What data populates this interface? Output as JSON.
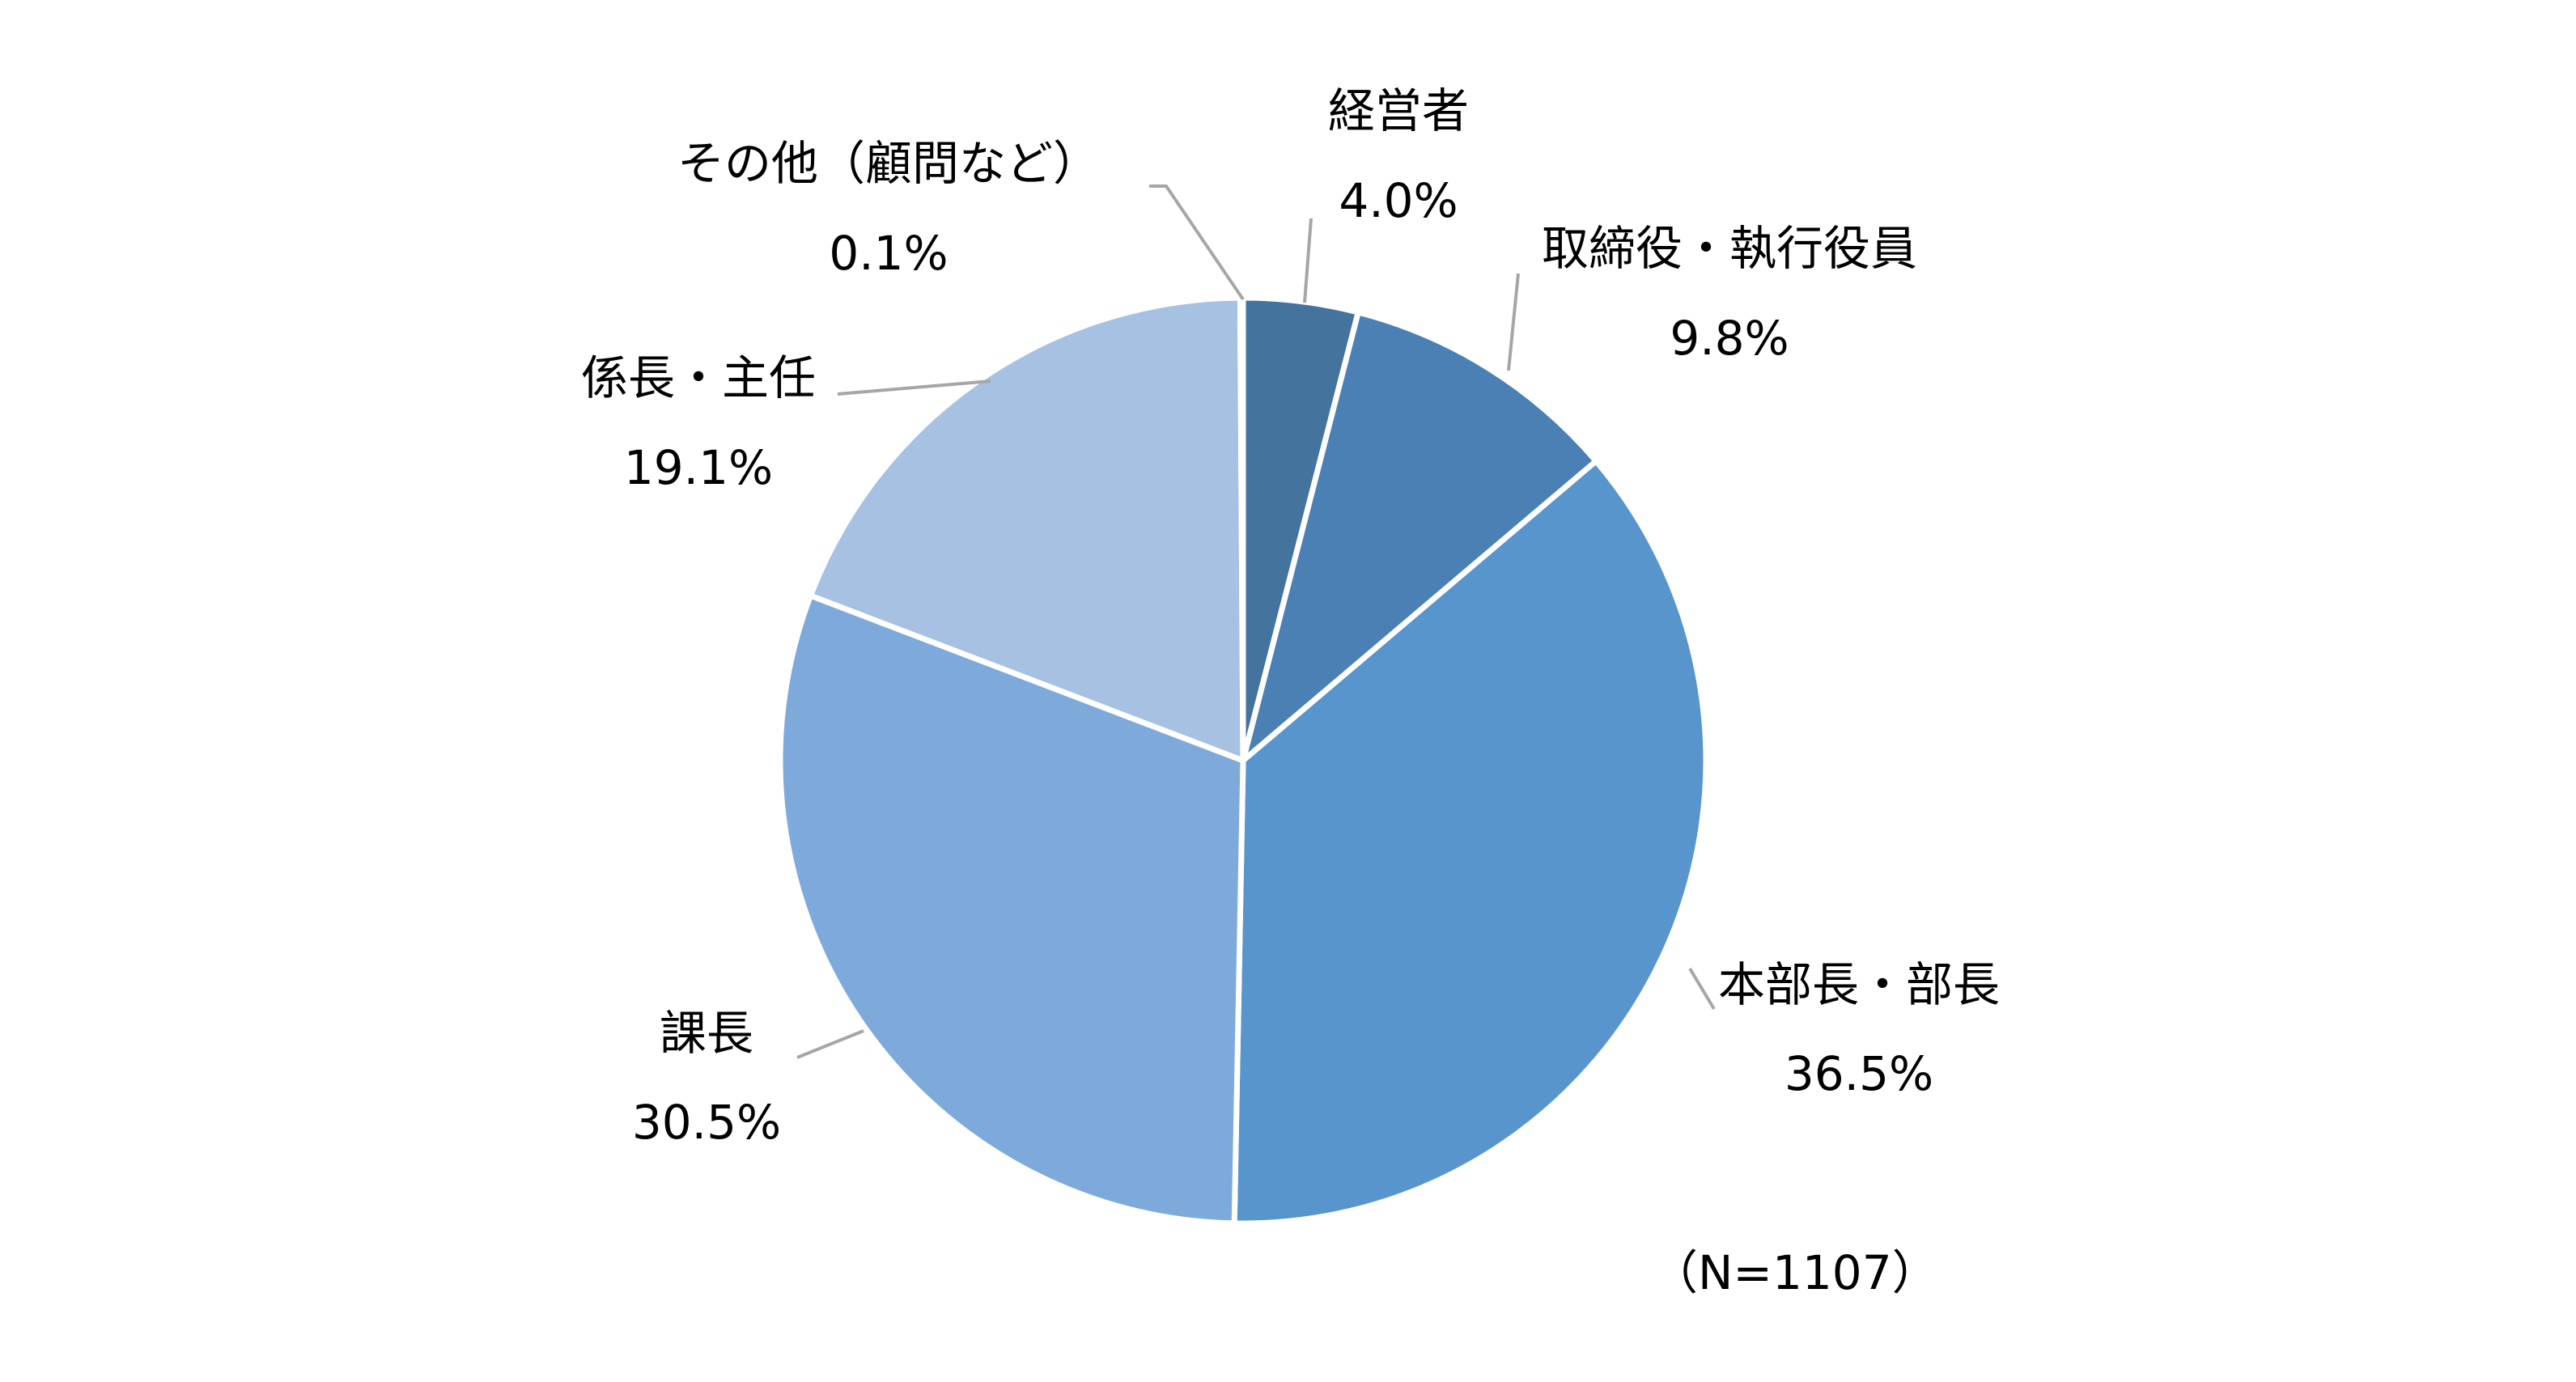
{
  "chart_data": {
    "type": "pie",
    "categories": [
      "経営者",
      "取締役・執行役員",
      "本部長・部長",
      "課長",
      "係長・主任",
      "その他（顧問など）"
    ],
    "values": [
      4.0,
      9.8,
      36.5,
      30.5,
      19.1,
      0.1
    ],
    "value_labels": [
      "4.0%",
      "9.8%",
      "36.5%",
      "30.5%",
      "19.1%",
      "0.1%"
    ],
    "colors": [
      "#44739e",
      "#4b80b5",
      "#5795cc",
      "#7eaadb",
      "#a6c1e2",
      "#c9d9ee"
    ],
    "start_angle": "12 o'clock",
    "direction": "clockwise",
    "legend": "none",
    "annotation": "（N=1107）"
  }
}
